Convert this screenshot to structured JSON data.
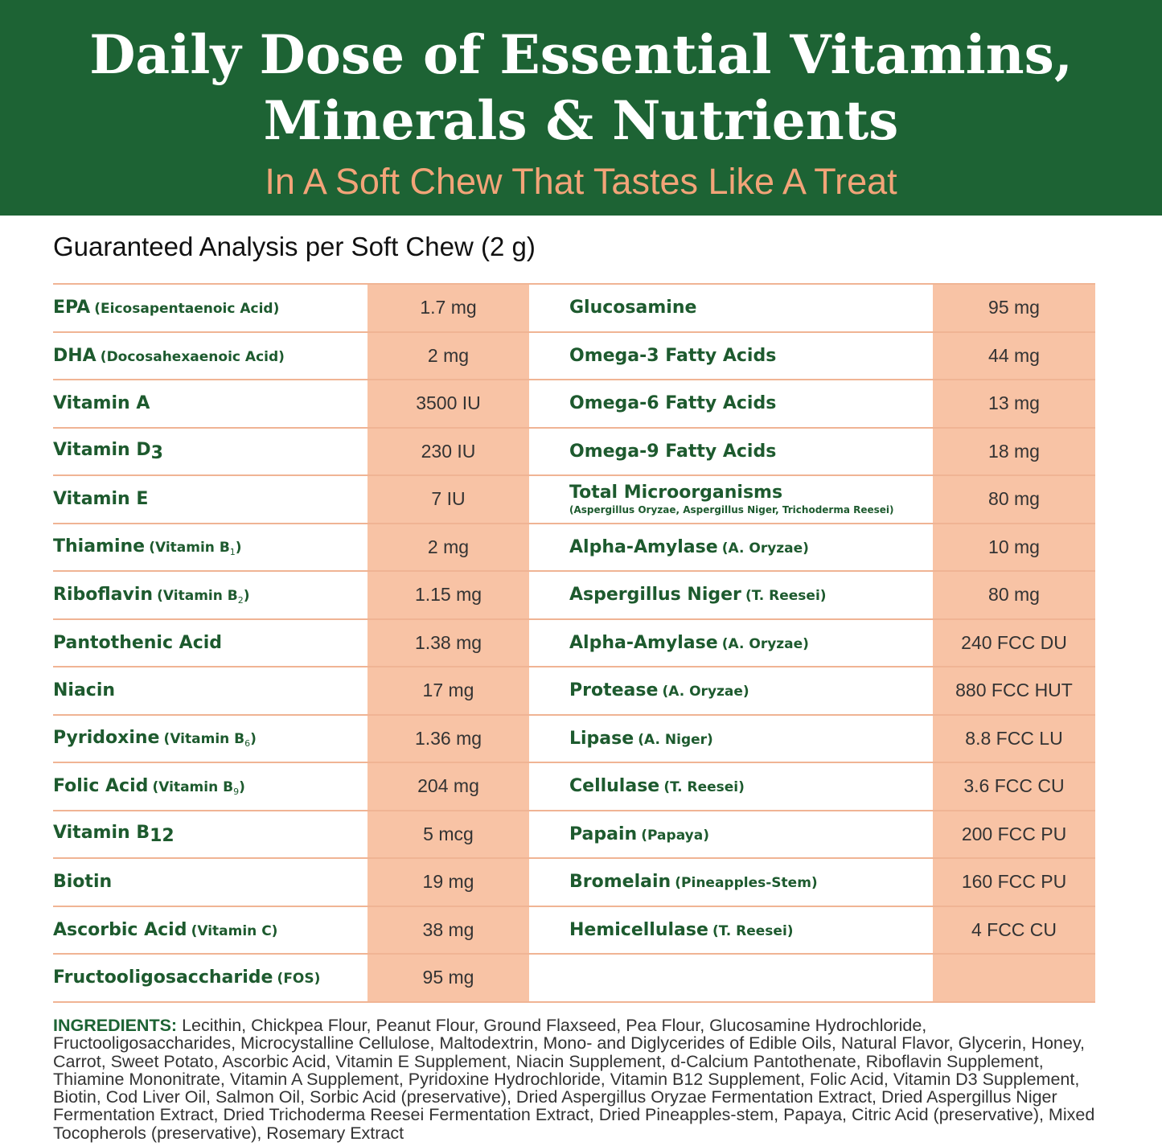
{
  "header": {
    "title_line1": "Daily Dose of Essential Vitamins,",
    "title_line2": "Minerals & Nutrients",
    "subtitle": "In A Soft Chew That Tastes Like A Treat"
  },
  "analysis": {
    "heading": "Guaranteed Analysis per Soft Chew (2 g)",
    "left": [
      {
        "name": "EPA",
        "note": "(Eicosapentaenoic Acid)",
        "amount": "1.7 mg"
      },
      {
        "name": "DHA",
        "note": "(Docosahexaenoic Acid)",
        "amount": "2 mg"
      },
      {
        "name": "Vitamin A",
        "amount": "3500 IU"
      },
      {
        "name": "Vitamin D",
        "name_sub": "3",
        "amount": "230 IU"
      },
      {
        "name": "Vitamin E",
        "amount": "7 IU"
      },
      {
        "name": "Thiamine",
        "note": "(Vitamin B",
        "note_sub": "1",
        "note_end": ")",
        "amount": "2 mg"
      },
      {
        "name": "Riboflavin",
        "note": "(Vitamin B",
        "note_sub": "2",
        "note_end": ")",
        "amount": "1.15 mg"
      },
      {
        "name": "Pantothenic Acid",
        "amount": "1.38 mg"
      },
      {
        "name": "Niacin",
        "amount": "17 mg"
      },
      {
        "name": "Pyridoxine",
        "note": "(Vitamin B",
        "note_sub": "6",
        "note_end": ")",
        "amount": "1.36 mg"
      },
      {
        "name": "Folic Acid",
        "note": "(Vitamin B",
        "note_sub": "9",
        "note_end": ")",
        "amount": "204 mg"
      },
      {
        "name": "Vitamin B",
        "name_sub": "12",
        "amount": "5 mcg"
      },
      {
        "name": "Biotin",
        "amount": "19 mg"
      },
      {
        "name": "Ascorbic Acid",
        "note": "(Vitamin C)",
        "amount": "38 mg"
      },
      {
        "name": "Fructooligosaccharide",
        "note": "(FOS)",
        "amount": "95 mg"
      }
    ],
    "right": [
      {
        "name": "Glucosamine",
        "amount": "95 mg"
      },
      {
        "name": "Omega-3 Fatty Acids",
        "amount": "44 mg"
      },
      {
        "name": "Omega-6 Fatty Acids",
        "amount": "13 mg"
      },
      {
        "name": "Omega-9 Fatty Acids",
        "amount": "18 mg"
      },
      {
        "name": "Total Microorganisms",
        "detail": "(Aspergillus Oryzae, Aspergillus Niger, Trichoderma Reesei)",
        "amount": "80 mg"
      },
      {
        "name": "Alpha-Amylase",
        "note": "(A. Oryzae)",
        "amount": "10 mg"
      },
      {
        "name": "Aspergillus Niger",
        "note": "(T. Reesei)",
        "amount": "80 mg"
      },
      {
        "name": "Alpha-Amylase",
        "note": "(A. Oryzae)",
        "amount": "240 FCC DU"
      },
      {
        "name": "Protease",
        "note": "(A. Oryzae)",
        "amount": "880 FCC HUT"
      },
      {
        "name": "Lipase",
        "note": "(A. Niger)",
        "amount": "8.8 FCC LU"
      },
      {
        "name": "Cellulase",
        "note": "(T. Reesei)",
        "amount": "3.6 FCC CU"
      },
      {
        "name": "Papain",
        "note": "(Papaya)",
        "amount": "200 FCC PU"
      },
      {
        "name": "Bromelain",
        "note": "(Pineapples-Stem)",
        "amount": "160 FCC PU"
      },
      {
        "name": "Hemicellulase",
        "note": "(T. Reesei)",
        "amount": "4 FCC CU"
      }
    ]
  },
  "ingredients": {
    "label": "INGREDIENTS:",
    "text": "Lecithin, Chickpea Flour, Peanut Flour, Ground Flaxseed, Pea Flour, Glucosamine Hydrochloride, Fructooligosaccharides, Microcystalline Cellulose, Maltodextrin, Mono- and Diglycerides of Edible Oils, Natural Flavor, Glycerin, Honey, Carrot, Sweet Potato, Ascorbic Acid, Vitamin E Supplement, Niacin Supplement, d-Calcium Pantothenate, Riboflavin Supplement, Thiamine Mononitrate, Vitamin A Supplement, Pyridoxine Hydrochloride, Vitamin B12 Supplement, Folic Acid, Vitamin D3 Supplement, Biotin, Cod Liver Oil, Salmon Oil, Sorbic Acid (preservative), Dried Aspergillus Oryzae Fermentation Extract, Dried Aspergillus Niger Fermentation Extract, Dried Trichoderma Reesei Fermentation Extract, Dried Pineapples-stem, Papaya, Citric Acid (preservative), Mixed Tocopherols (preservative), Rosemary Extract"
  }
}
